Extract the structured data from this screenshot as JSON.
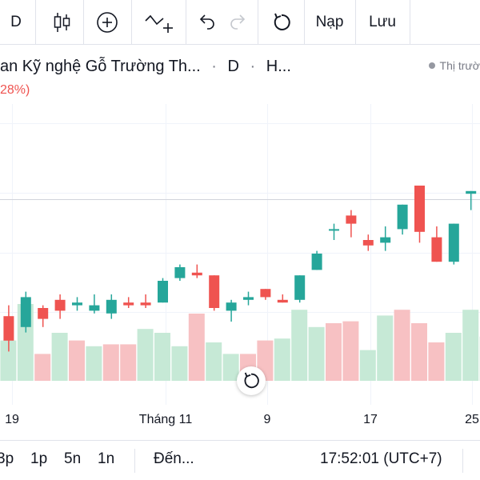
{
  "toolbar": {
    "interval_label": "D",
    "nap_label": "Nạp",
    "luu_label": "Lưu",
    "icons": [
      "candles-icon",
      "add-indicator-icon",
      "compare-icon",
      "undo-icon",
      "redo-icon",
      "reload-icon"
    ]
  },
  "legend": {
    "symbol_text": "an Kỹ nghệ Gỗ Trường Th...",
    "interval": "D",
    "exchange": "H...",
    "change_text": "28%)",
    "market_status": "Thị trườ"
  },
  "colors": {
    "up": "#26a69a",
    "down": "#ef5350",
    "up_vol": "#c6e9d6",
    "down_vol": "#f7c1c3"
  },
  "chart_data": {
    "type": "candlestick",
    "title": "",
    "ylim": [
      0,
      100
    ],
    "x_tick_labels": [
      "19",
      "Tháng 11",
      "9",
      "17",
      "25"
    ],
    "candles": [
      {
        "o": 22,
        "h": 26,
        "l": 15,
        "c": 18
      },
      {
        "o": 22,
        "h": 26,
        "l": 9,
        "c": 13
      },
      {
        "o": 18,
        "h": 31,
        "l": 16,
        "c": 29
      },
      {
        "o": 25,
        "h": 26,
        "l": 18,
        "c": 21
      },
      {
        "o": 28,
        "h": 30,
        "l": 21,
        "c": 24
      },
      {
        "o": 26,
        "h": 29,
        "l": 24,
        "c": 27
      },
      {
        "o": 24,
        "h": 30,
        "l": 23,
        "c": 26
      },
      {
        "o": 23,
        "h": 30,
        "l": 21,
        "c": 28
      },
      {
        "o": 27,
        "h": 29,
        "l": 25,
        "c": 26
      },
      {
        "o": 27,
        "h": 30,
        "l": 25,
        "c": 26
      },
      {
        "o": 27,
        "h": 36,
        "l": 27,
        "c": 35
      },
      {
        "o": 36,
        "h": 41,
        "l": 35,
        "c": 40
      },
      {
        "o": 38,
        "h": 41,
        "l": 36,
        "c": 37
      },
      {
        "o": 37,
        "h": 37,
        "l": 24,
        "c": 25
      },
      {
        "o": 24,
        "h": 28,
        "l": 20,
        "c": 27
      },
      {
        "o": 28,
        "h": 31,
        "l": 26,
        "c": 29
      },
      {
        "o": 32,
        "h": 32,
        "l": 28,
        "c": 29
      },
      {
        "o": 28,
        "h": 30,
        "l": 27,
        "c": 27
      },
      {
        "o": 28,
        "h": 37,
        "l": 27,
        "c": 37
      },
      {
        "o": 39,
        "h": 46,
        "l": 39,
        "c": 45
      },
      {
        "o": 54,
        "h": 56,
        "l": 50,
        "c": 54
      },
      {
        "o": 59,
        "h": 61,
        "l": 51,
        "c": 56
      },
      {
        "o": 50,
        "h": 52,
        "l": 46,
        "c": 48
      },
      {
        "o": 49,
        "h": 55,
        "l": 46,
        "c": 51
      },
      {
        "o": 54,
        "h": 63,
        "l": 52,
        "c": 63
      },
      {
        "o": 70,
        "h": 70,
        "l": 49,
        "c": 53
      },
      {
        "o": 51,
        "h": 55,
        "l": 42,
        "c": 42
      },
      {
        "o": 42,
        "h": 56,
        "l": 41,
        "c": 56
      },
      {
        "o": 67,
        "h": 68,
        "l": 61,
        "c": 68
      },
      {
        "o": 67,
        "h": 74,
        "l": 65,
        "c": 70
      }
    ],
    "volumes": [
      12,
      21,
      40,
      14,
      25,
      21,
      18,
      19,
      19,
      27,
      25,
      18,
      35,
      20,
      14,
      14,
      21,
      22,
      37,
      28,
      30,
      31,
      16,
      34,
      37,
      30,
      20,
      25,
      37,
      23
    ],
    "volume_up": [
      false,
      true,
      true,
      false,
      true,
      false,
      true,
      false,
      false,
      true,
      true,
      true,
      false,
      true,
      true,
      false,
      false,
      true,
      true,
      true,
      false,
      false,
      true,
      true,
      false,
      false,
      false,
      true,
      true,
      true
    ]
  },
  "x_labels": [
    "19",
    "Tháng 11",
    "9",
    "17",
    "25"
  ],
  "bottom": {
    "r_3m": "3p",
    "r_1m": "1p",
    "r_5y": "5n",
    "r_1y": "1n",
    "goto": "Đến...",
    "clock": "17:52:01 (UTC+7)"
  }
}
